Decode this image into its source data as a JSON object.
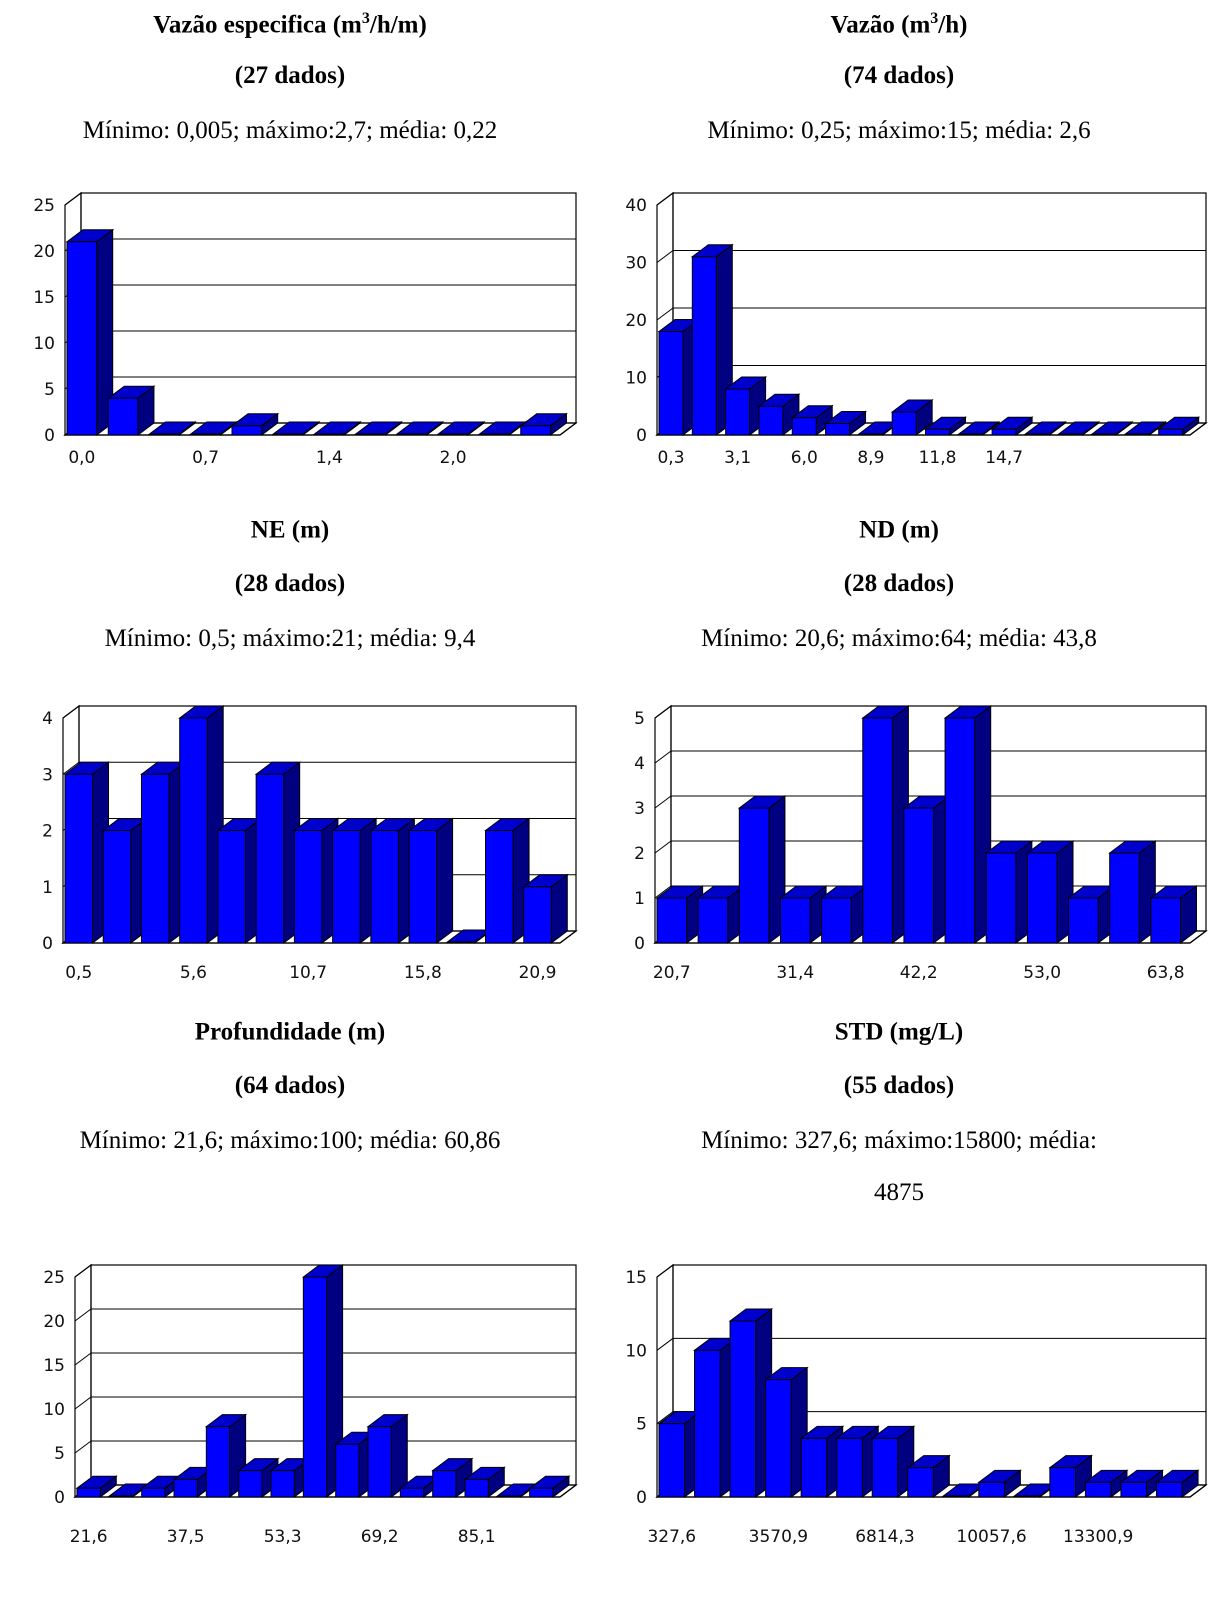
{
  "colors": {
    "bar_front": "#0000ff",
    "bar_top": "#0000cc",
    "bar_side": "#000080",
    "grid": "#000000",
    "background": "#ffffff"
  },
  "panels": [
    {
      "title_main": "Vazão especifica (m",
      "title_sup": "3",
      "title_rest": "/h/m)",
      "count": "(27 dados)",
      "stats": "Mínimo: 0,005; máximo:2,7; média: 0,22",
      "stats_cont": "",
      "chart_data": {
        "type": "bar",
        "ylim": [
          0,
          25
        ],
        "yticks": [
          "0",
          "5",
          "10",
          "15",
          "20",
          "25"
        ],
        "xtick_labels": [
          "0,0",
          "0,7",
          "1,4",
          "2,0"
        ],
        "xtick_bins": [
          0,
          3,
          6,
          9
        ],
        "values": [
          21,
          4,
          0,
          0,
          1,
          0,
          0,
          0,
          0,
          0,
          0,
          1
        ],
        "grid": true
      }
    },
    {
      "title_main": "Vazão (m",
      "title_sup": "3",
      "title_rest": "/h)",
      "count": "(74 dados)",
      "stats": "Mínimo: 0,25; máximo:15; média: 2,6",
      "stats_cont": "",
      "chart_data": {
        "type": "bar",
        "ylim": [
          0,
          40
        ],
        "yticks": [
          "0",
          "10",
          "20",
          "30",
          "40"
        ],
        "xtick_labels": [
          "0,3",
          "3,1",
          "6,0",
          "8,9",
          "11,8",
          "14,7"
        ],
        "xtick_bins": [
          0,
          2,
          4,
          6,
          8,
          10
        ],
        "values": [
          18,
          31,
          8,
          5,
          3,
          2,
          0,
          4,
          1,
          0,
          1,
          0,
          0,
          0,
          0,
          1
        ],
        "grid": true
      }
    },
    {
      "title_main": "NE (m)",
      "title_sup": "",
      "title_rest": "",
      "count": "(28 dados)",
      "stats": "Mínimo: 0,5; máximo:21; média: 9,4",
      "stats_cont": "",
      "chart_data": {
        "type": "bar",
        "ylim": [
          0,
          4
        ],
        "yticks": [
          "0",
          "1",
          "2",
          "3",
          "4"
        ],
        "xtick_labels": [
          "0,5",
          "5,6",
          "10,7",
          "15,8",
          "20,9"
        ],
        "xtick_bins": [
          0,
          3,
          6,
          9,
          12
        ],
        "values": [
          3,
          2,
          3,
          4,
          2,
          3,
          2,
          2,
          2,
          2,
          0,
          2,
          1
        ],
        "grid": true
      }
    },
    {
      "title_main": "ND (m)",
      "title_sup": "",
      "title_rest": "",
      "count": "(28 dados)",
      "stats": "Mínimo: 20,6; máximo:64; média: 43,8",
      "stats_cont": "",
      "chart_data": {
        "type": "bar",
        "ylim": [
          0,
          5
        ],
        "yticks": [
          "0",
          "1",
          "2",
          "3",
          "4",
          "5"
        ],
        "xtick_labels": [
          "20,7",
          "31,4",
          "42,2",
          "53,0",
          "63,8"
        ],
        "xtick_bins": [
          0,
          3,
          6,
          9,
          12
        ],
        "values": [
          1,
          1,
          3,
          1,
          1,
          5,
          3,
          5,
          2,
          2,
          1,
          2,
          1
        ],
        "grid": true
      }
    },
    {
      "title_main": "Profundidade (m)",
      "title_sup": "",
      "title_rest": "",
      "count": "(64 dados)",
      "stats": "Mínimo: 21,6; máximo:100; média: 60,86",
      "stats_cont": "",
      "chart_data": {
        "type": "bar",
        "ylim": [
          0,
          25
        ],
        "yticks": [
          "0",
          "5",
          "10",
          "15",
          "20",
          "25"
        ],
        "xtick_labels": [
          "21,6",
          "37,5",
          "53,3",
          "69,2",
          "85,1"
        ],
        "xtick_bins": [
          0,
          3,
          6,
          9,
          12
        ],
        "values": [
          1,
          0,
          1,
          2,
          8,
          3,
          3,
          25,
          6,
          8,
          1,
          3,
          2,
          0,
          1
        ],
        "grid": true
      }
    },
    {
      "title_main": "STD (mg/L)",
      "title_sup": "",
      "title_rest": "",
      "count": "(55 dados)",
      "stats": "Mínimo: 327,6; máximo:15800; média:",
      "stats_cont": "4875",
      "chart_data": {
        "type": "bar",
        "ylim": [
          0,
          15
        ],
        "yticks": [
          "0",
          "5",
          "10",
          "15"
        ],
        "xtick_labels": [
          "327,6",
          "3570,9",
          "6814,3",
          "10057,6",
          "13300,9"
        ],
        "xtick_bins": [
          0,
          3,
          6,
          9,
          12
        ],
        "values": [
          5,
          10,
          12,
          8,
          4,
          4,
          4,
          2,
          0,
          1,
          0,
          2,
          1,
          1,
          1
        ],
        "grid": true
      }
    }
  ]
}
